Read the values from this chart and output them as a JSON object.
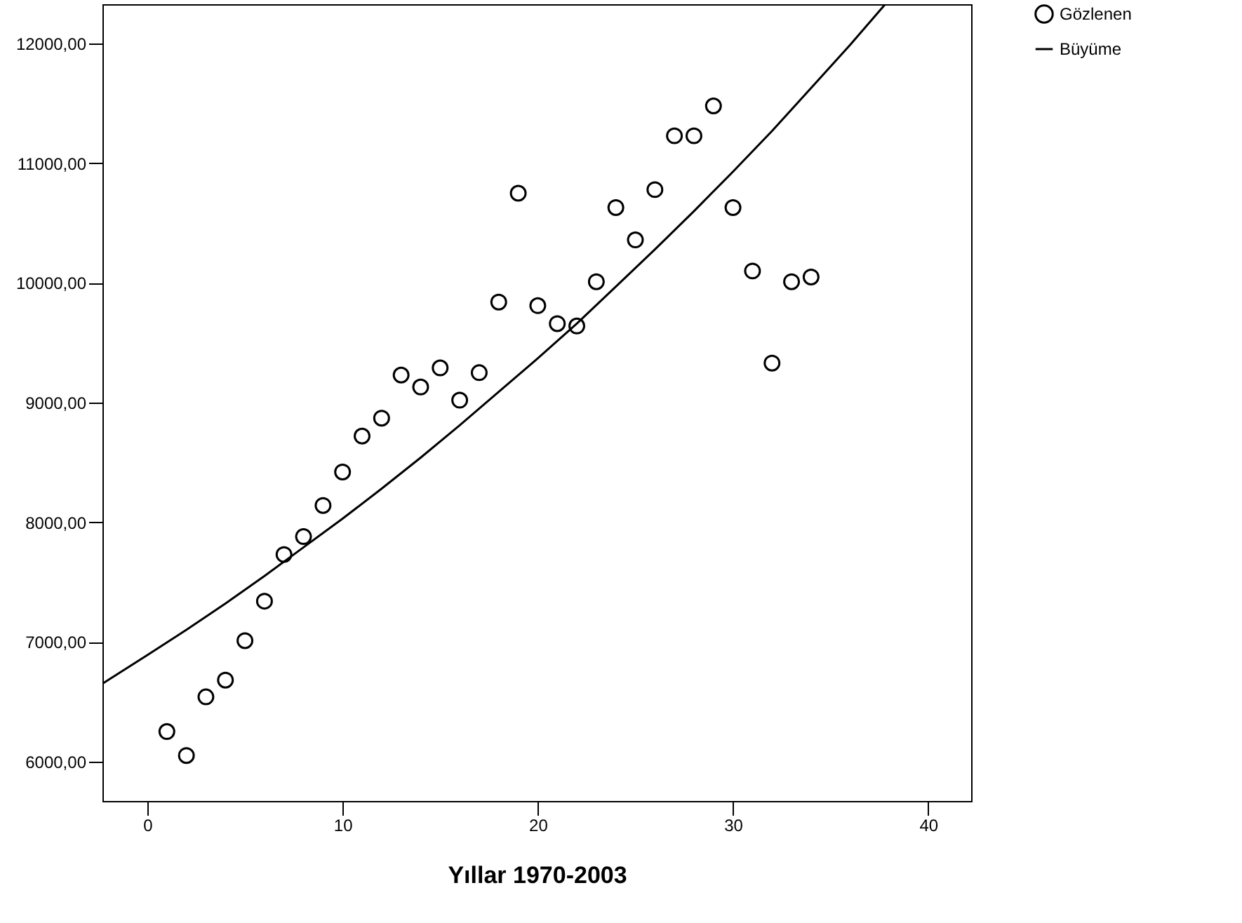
{
  "chart_data": {
    "type": "scatter",
    "xlabel": "Yıllar 1970-2003",
    "xlim": [
      -2.3,
      42.2
    ],
    "xticks": [
      0,
      10,
      20,
      30,
      40
    ],
    "ylim": [
      5670,
      12330
    ],
    "yticks": [
      {
        "value": 6000,
        "label": "6000,00"
      },
      {
        "value": 7000,
        "label": "7000,00"
      },
      {
        "value": 8000,
        "label": "8000,00"
      },
      {
        "value": 9000,
        "label": "9000,00"
      },
      {
        "value": 10000,
        "label": "10000,00"
      },
      {
        "value": 11000,
        "label": "11000,00"
      },
      {
        "value": 12000,
        "label": "12000,00"
      }
    ],
    "grid": false,
    "legend": "right",
    "series": [
      {
        "name": "Gözlenen",
        "marker": "circle",
        "color": "#000000",
        "x": [
          1,
          2,
          3,
          4,
          5,
          6,
          7,
          8,
          9,
          10,
          11,
          12,
          13,
          14,
          15,
          16,
          17,
          18,
          19,
          20,
          21,
          22,
          23,
          24,
          25,
          26,
          27,
          28,
          29,
          30,
          31,
          32,
          33,
          34
        ],
        "values": [
          6250,
          6050,
          6540,
          6680,
          7010,
          7340,
          7730,
          7880,
          8140,
          8420,
          8720,
          8870,
          9230,
          9130,
          9290,
          9020,
          9250,
          9840,
          10750,
          9810,
          9660,
          9640,
          10010,
          10630,
          10360,
          10780,
          11230,
          11230,
          11480,
          10630,
          10100,
          9330,
          10010,
          10050
        ]
      },
      {
        "name": "Büyüme",
        "type": "line",
        "line_style": "solid",
        "color": "#000000",
        "x": [
          -2.3,
          0,
          2,
          4,
          6,
          8,
          10,
          12,
          14,
          16,
          18,
          20,
          22,
          24,
          26,
          28,
          30,
          32,
          34,
          36,
          37.8
        ],
        "values": [
          6650,
          6890,
          7100,
          7320,
          7550,
          7790,
          8030,
          8280,
          8540,
          8810,
          9090,
          9370,
          9660,
          9970,
          10280,
          10600,
          10930,
          11270,
          11630,
          11990,
          12330
        ]
      }
    ]
  }
}
